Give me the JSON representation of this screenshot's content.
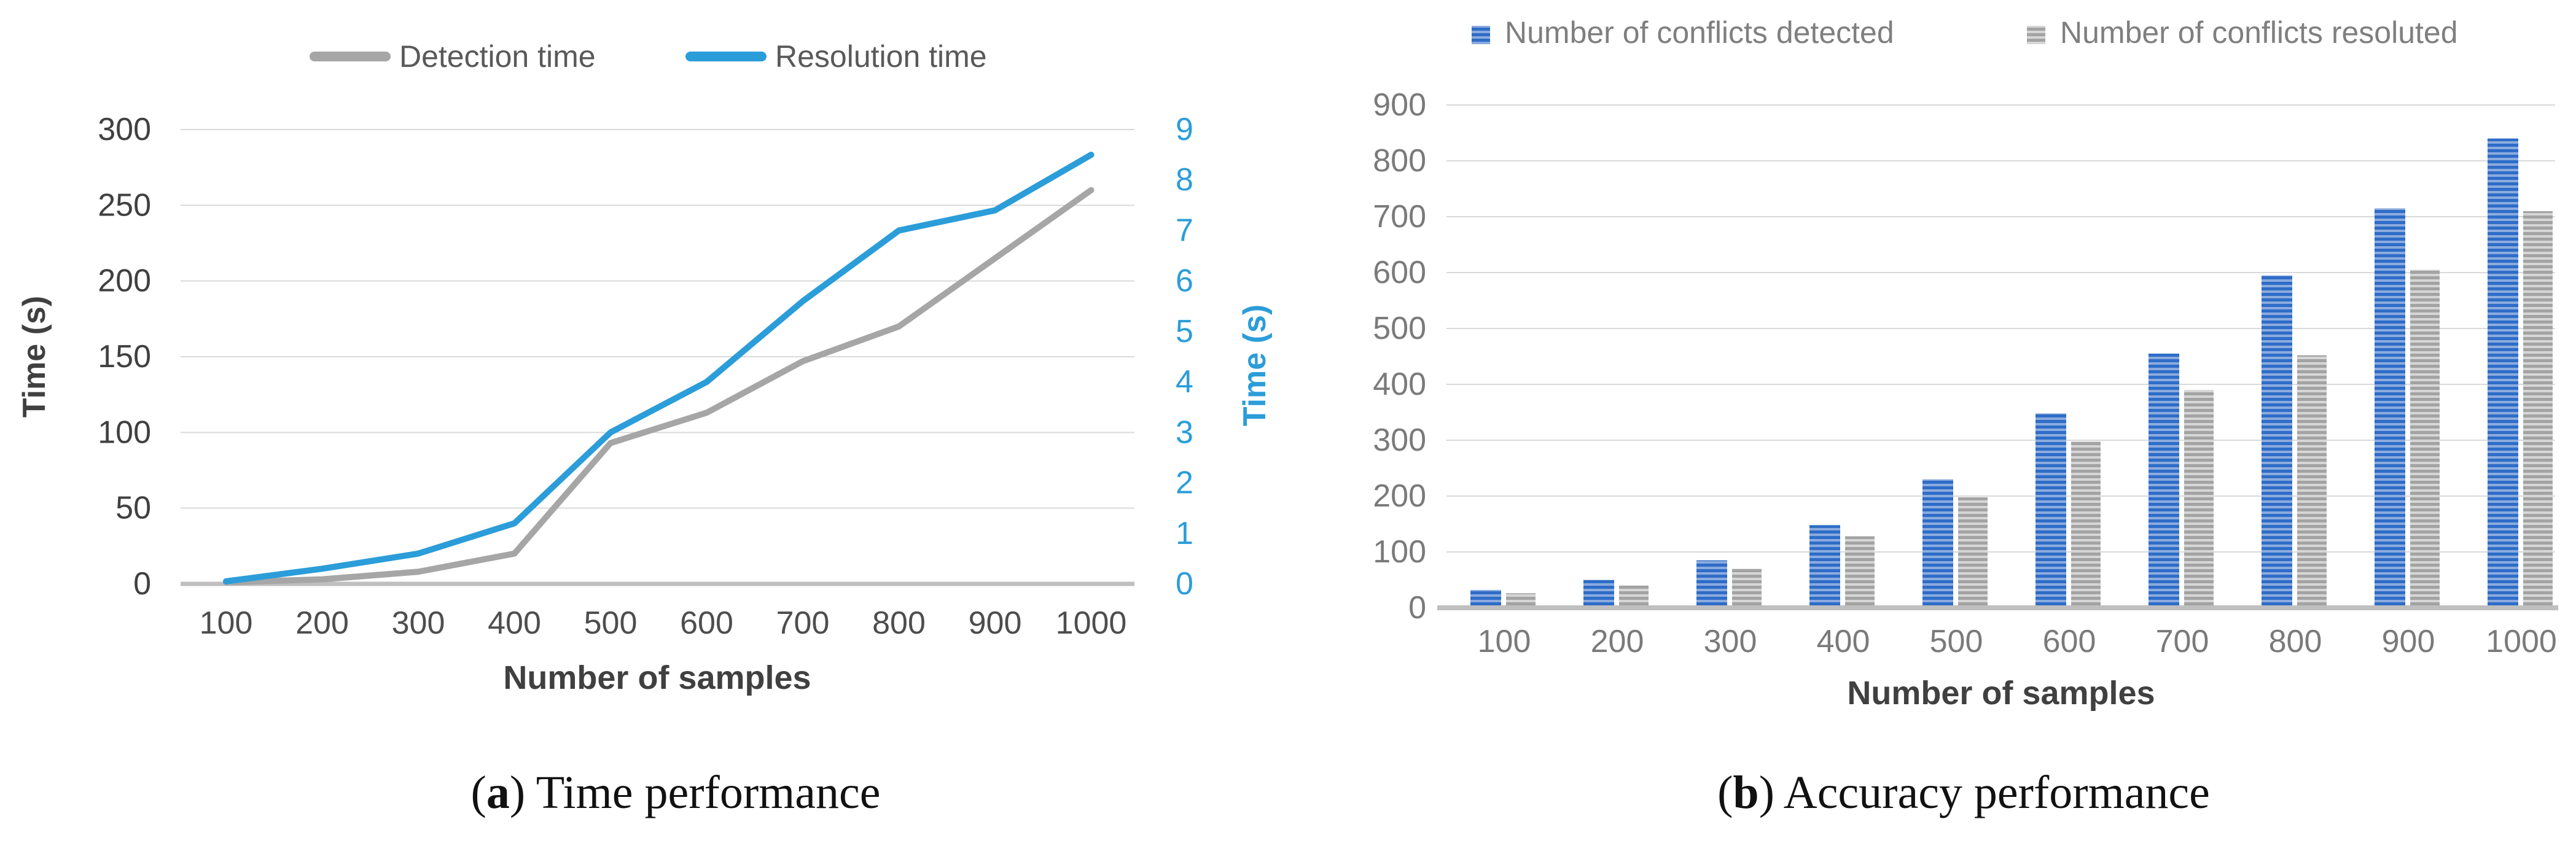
{
  "figure": {
    "background": "#ffffff",
    "captions": {
      "a": {
        "open": "(",
        "letter": "a",
        "close": ")",
        "text": " Time performance"
      },
      "b": {
        "open": "(",
        "letter": "b",
        "close": ")",
        "text": " Accuracy performance"
      }
    }
  },
  "chart_data": [
    {
      "id": "time-performance",
      "type": "line",
      "title": "",
      "categories": [
        100,
        200,
        300,
        400,
        500,
        600,
        700,
        800,
        900,
        1000
      ],
      "xlabel": "Number of samples",
      "grid": true,
      "legend_position": "top",
      "legend_color": "#595959",
      "text_color": "#404040",
      "gridline_color": "#d9d9d9",
      "axis_line_color": "#bfbfbf",
      "axes": {
        "left": {
          "label": "Time (s)",
          "range": [
            0,
            300
          ],
          "ticks": [
            0,
            50,
            100,
            150,
            200,
            250,
            300
          ],
          "color": "#404040"
        },
        "right": {
          "label": "Time (s)",
          "range": [
            0,
            9
          ],
          "ticks": [
            0,
            1,
            2,
            3,
            4,
            5,
            6,
            7,
            8,
            9
          ],
          "color": "#2b9dd9"
        }
      },
      "series": [
        {
          "name": "Detection time",
          "axis": "left",
          "color": "#a6a6a6",
          "values": [
            1,
            3,
            8,
            20,
            93,
            113,
            147,
            170,
            215,
            260
          ]
        },
        {
          "name": "Resolution time",
          "axis": "right",
          "color": "#2b9dd9",
          "values": [
            0.05,
            0.3,
            0.6,
            1.2,
            3.0,
            4.0,
            5.6,
            7.0,
            7.4,
            8.5
          ]
        }
      ]
    },
    {
      "id": "accuracy-performance",
      "type": "bar",
      "title": "",
      "categories": [
        100,
        200,
        300,
        400,
        500,
        600,
        700,
        800,
        900,
        1000
      ],
      "xlabel": "Number of samples",
      "grid": true,
      "legend_position": "top",
      "legend_color": "#7f7f7f",
      "text_color": "#404040",
      "gridline_color": "#d9d9d9",
      "axis_line_color": "#bfbfbf",
      "axes": {
        "left": {
          "label": "",
          "range": [
            0,
            900
          ],
          "ticks": [
            0,
            100,
            200,
            300,
            400,
            500,
            600,
            700,
            800,
            900
          ],
          "color": "#7a7a7a"
        }
      },
      "series": [
        {
          "name": "Number of conflicts detected",
          "color": "#2e6dc8",
          "stripe_color": "#8cabde",
          "values": [
            32,
            50,
            85,
            148,
            230,
            348,
            455,
            595,
            715,
            840
          ]
        },
        {
          "name": "Number of conflicts resoluted",
          "color": "#a3a3a3",
          "stripe_color": "#d6d6d6",
          "values": [
            26,
            40,
            70,
            128,
            198,
            298,
            390,
            452,
            605,
            710
          ]
        }
      ]
    }
  ]
}
